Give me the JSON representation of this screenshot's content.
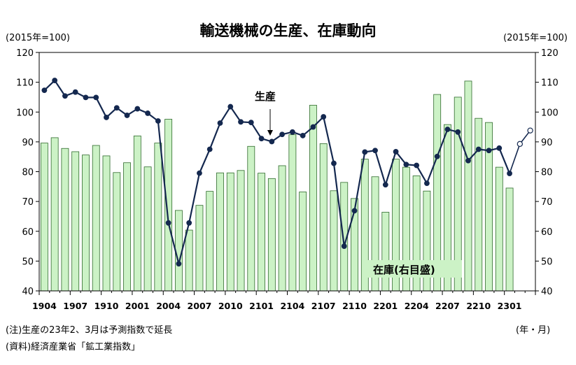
{
  "title": "輸送機械の生産、在庫動向",
  "unit_left": "(2015年=100)",
  "unit_right": "(2015年=100)",
  "x_unit": "(年・月)",
  "note_1": "(注)生産の23年2、3月は予測指数で延長",
  "note_2": "(資料)経済産業省「鉱工業指数」",
  "colors": {
    "bar_fill": "#ccf2c6",
    "bar_stroke": "#2f6a2c",
    "line": "#14284f",
    "forecast_marker_fill": "#ffffff"
  },
  "chart_data": {
    "type": "bar+line",
    "y_range": [
      40,
      120
    ],
    "y_ticks": [
      "40",
      "50",
      "60",
      "70",
      "80",
      "90",
      "100",
      "110",
      "120"
    ],
    "y2_range": [
      40,
      120
    ],
    "y2_ticks": [
      "40",
      "50",
      "60",
      "70",
      "80",
      "90",
      "100",
      "110",
      "120"
    ],
    "x_tick_labels": [
      "1904",
      "1907",
      "1910",
      "2001",
      "2004",
      "2007",
      "2010",
      "2101",
      "2104",
      "2107",
      "2110",
      "2201",
      "2204",
      "2207",
      "2210",
      "2301"
    ],
    "x_tick_every": 3,
    "grid": false,
    "categories": [
      "1904",
      "1905",
      "1906",
      "1907",
      "1908",
      "1909",
      "1910",
      "1911",
      "1912",
      "2001",
      "2002",
      "2003",
      "2004",
      "2005",
      "2006",
      "2007",
      "2008",
      "2009",
      "2010",
      "2011",
      "2012",
      "2101",
      "2102",
      "2103",
      "2104",
      "2105",
      "2106",
      "2107",
      "2108",
      "2109",
      "2110",
      "2111",
      "2112",
      "2201",
      "2202",
      "2203",
      "2204",
      "2205",
      "2206",
      "2207",
      "2208",
      "2209",
      "2210",
      "2211",
      "2212",
      "2301",
      "2302",
      "2303"
    ],
    "series": [
      {
        "name": "在庫(右目盛)",
        "type": "bar",
        "axis": "right",
        "label": "在庫(右目盛)",
        "values": [
          89.6,
          91.4,
          87.8,
          86.7,
          85.6,
          88.8,
          85.3,
          79.7,
          83.0,
          92.0,
          81.6,
          89.6,
          97.6,
          67.0,
          60.4,
          68.7,
          73.4,
          79.6,
          79.6,
          80.4,
          88.5,
          79.5,
          77.7,
          82.0,
          92.4,
          73.2,
          102.3,
          89.4,
          73.6,
          76.4,
          71.0,
          84.2,
          78.3,
          66.4,
          84.2,
          81.5,
          78.6,
          73.5,
          105.9,
          95.8,
          105.0,
          110.4,
          97.9,
          96.5,
          81.5,
          74.5,
          null,
          null
        ]
      },
      {
        "name": "生産",
        "type": "line",
        "axis": "left",
        "label": "生産",
        "values": [
          107.3,
          110.6,
          105.4,
          106.7,
          104.9,
          104.9,
          98.2,
          101.4,
          98.9,
          101.1,
          99.6,
          97.0,
          62.8,
          49.1,
          62.8,
          79.5,
          87.5,
          96.3,
          101.8,
          96.7,
          96.5,
          91.1,
          90.1,
          92.5,
          93.3,
          92.1,
          95.0,
          98.4,
          82.8,
          55.0,
          66.9,
          86.6,
          87.1,
          75.6,
          86.7,
          82.4,
          82.1,
          76.1,
          85.1,
          94.2,
          93.3,
          83.7,
          87.5,
          87.1,
          87.9,
          79.4,
          89.3,
          93.8
        ],
        "forecast_from_index": 46
      }
    ]
  }
}
